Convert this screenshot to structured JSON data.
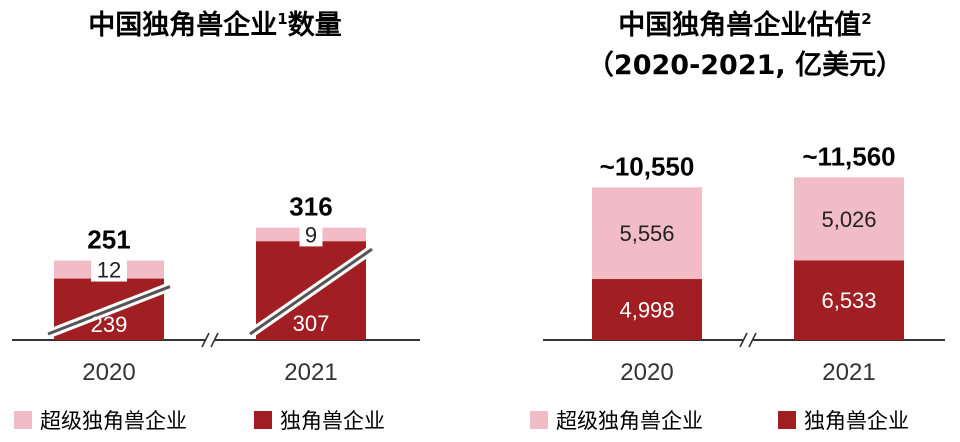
{
  "colors": {
    "super_unicorn": "#f2bcc6",
    "unicorn": "#a11f22",
    "axis": "#333333"
  },
  "chart_data": [
    {
      "type": "bar",
      "stacked": true,
      "title": "中国独角兽企业",
      "title_sup": "1",
      "title_suffix": "数量",
      "categories": [
        "2020",
        "2021"
      ],
      "series": [
        {
          "name": "独角兽企业",
          "values": [
            239,
            307
          ],
          "labels": [
            "239",
            "307"
          ]
        },
        {
          "name": "超级独角兽企业",
          "values": [
            12,
            9
          ],
          "labels": [
            "12",
            "9"
          ]
        }
      ],
      "totals": [
        "251",
        "316"
      ],
      "axis_break": true
    },
    {
      "type": "bar",
      "stacked": true,
      "title": "中国独角兽企业估值",
      "title_sup": "2",
      "subtitle": "（2020-2021, 亿美元）",
      "categories": [
        "2020",
        "2021"
      ],
      "series": [
        {
          "name": "独角兽企业",
          "values": [
            4998,
            6533
          ],
          "labels": [
            "4,998",
            "6,533"
          ]
        },
        {
          "name": "超级独角兽企业",
          "values": [
            5556,
            5026
          ],
          "labels": [
            "5,556",
            "5,026"
          ]
        }
      ],
      "totals": [
        "~10,550",
        "~11,560"
      ],
      "axis_break": true
    }
  ],
  "legend": {
    "super_unicorn": "超级独角兽企业",
    "unicorn": "独角兽企业",
    "position": "bottom"
  }
}
